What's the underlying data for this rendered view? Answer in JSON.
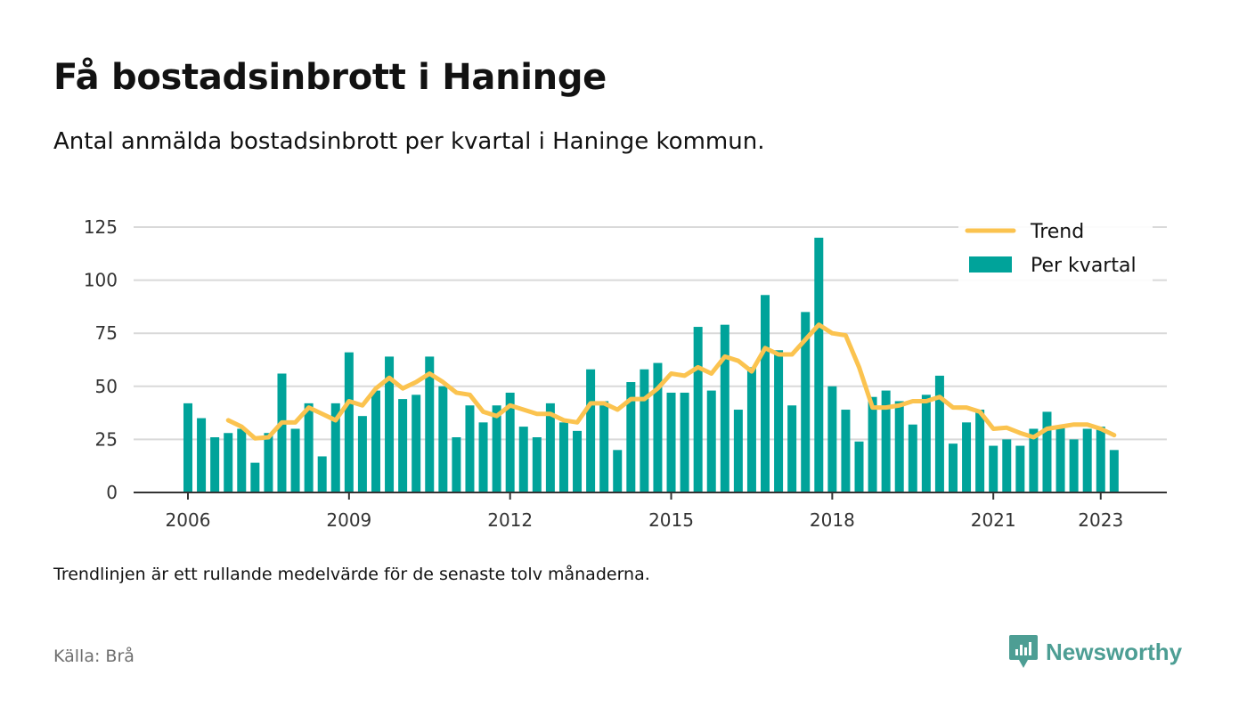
{
  "header": {
    "title": "Få bostadsinbrott i Haninge",
    "subtitle": "Antal anmälda bostadsinbrott per kvartal i Haninge kommun."
  },
  "footer": {
    "note": "Trendlinjen är ett rullande medelvärde för de senaste tolv månaderna.",
    "source": "Källa: Brå",
    "brand": "Newsworthy"
  },
  "colors": {
    "bar": "#00a39a",
    "trend": "#fbc34f",
    "grid": "#d9d9d9",
    "axis": "#333333",
    "brand": "#4d9e94"
  },
  "chart_data": {
    "type": "bar",
    "title": "",
    "xlabel": "",
    "ylabel": "",
    "ylim": [
      0,
      125
    ],
    "y_ticks": [
      "0",
      "25",
      "50",
      "75",
      "100",
      "125"
    ],
    "x_ticks": [
      "2006",
      "2009",
      "2012",
      "2015",
      "2018",
      "2021",
      "2023"
    ],
    "grid": true,
    "legend_position": "top-right",
    "categories": [
      "2006 Q1",
      "2006 Q2",
      "2006 Q3",
      "2006 Q4",
      "2007 Q1",
      "2007 Q2",
      "2007 Q3",
      "2007 Q4",
      "2008 Q1",
      "2008 Q2",
      "2008 Q3",
      "2008 Q4",
      "2009 Q1",
      "2009 Q2",
      "2009 Q3",
      "2009 Q4",
      "2010 Q1",
      "2010 Q2",
      "2010 Q3",
      "2010 Q4",
      "2011 Q1",
      "2011 Q2",
      "2011 Q3",
      "2011 Q4",
      "2012 Q1",
      "2012 Q2",
      "2012 Q3",
      "2012 Q4",
      "2013 Q1",
      "2013 Q2",
      "2013 Q3",
      "2013 Q4",
      "2014 Q1",
      "2014 Q2",
      "2014 Q3",
      "2014 Q4",
      "2015 Q1",
      "2015 Q2",
      "2015 Q3",
      "2015 Q4",
      "2016 Q1",
      "2016 Q2",
      "2016 Q3",
      "2016 Q4",
      "2017 Q1",
      "2017 Q2",
      "2017 Q3",
      "2017 Q4",
      "2018 Q1",
      "2018 Q2",
      "2018 Q3",
      "2018 Q4",
      "2019 Q1",
      "2019 Q2",
      "2019 Q3",
      "2019 Q4",
      "2020 Q1",
      "2020 Q2",
      "2020 Q3",
      "2020 Q4",
      "2021 Q1",
      "2021 Q2",
      "2021 Q3",
      "2021 Q4",
      "2022 Q1",
      "2022 Q2",
      "2022 Q3",
      "2022 Q4",
      "2023 Q1",
      "2023 Q2"
    ],
    "series": [
      {
        "name": "Per kvartal",
        "kind": "bar",
        "values": [
          42,
          35,
          26,
          28,
          30,
          14,
          28,
          56,
          30,
          42,
          17,
          42,
          66,
          36,
          48,
          64,
          44,
          46,
          64,
          50,
          26,
          41,
          33,
          41,
          47,
          31,
          26,
          42,
          33,
          29,
          58,
          43,
          20,
          52,
          58,
          61,
          47,
          47,
          78,
          48,
          79,
          39,
          59,
          93,
          67,
          41,
          85,
          120,
          50,
          39,
          24,
          45,
          48,
          43,
          32,
          46,
          55,
          23,
          33,
          39,
          22,
          25,
          22,
          30,
          38,
          31,
          25,
          30,
          31,
          20
        ]
      },
      {
        "name": "Trend",
        "kind": "line",
        "values": [
          null,
          null,
          null,
          34,
          31,
          25.5,
          26,
          33,
          33,
          40,
          37,
          34,
          43,
          41,
          49,
          54,
          49,
          52,
          56,
          52,
          47,
          46,
          38,
          36,
          41,
          39,
          37,
          37,
          34,
          33,
          42,
          42,
          39,
          44,
          44,
          49,
          56,
          55,
          59,
          56,
          64,
          62,
          57,
          68,
          65,
          65,
          72,
          79,
          75,
          74,
          59,
          40,
          40,
          41,
          43,
          43,
          45,
          40,
          40,
          38,
          30,
          30.5,
          28,
          26,
          30,
          31,
          32,
          32,
          30,
          27
        ]
      }
    ]
  }
}
